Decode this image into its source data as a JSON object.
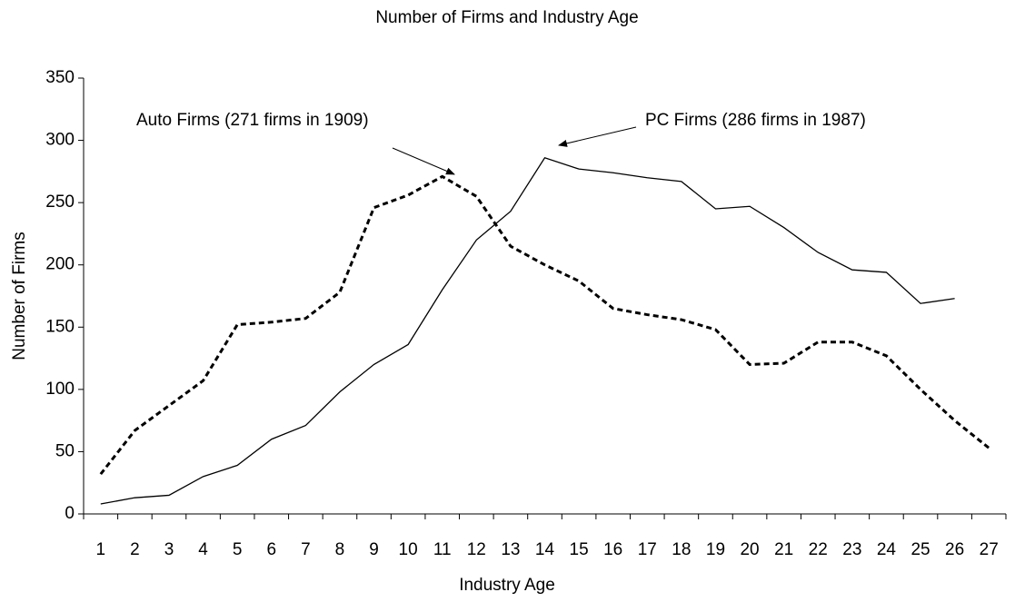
{
  "chart_data": {
    "type": "line",
    "title": "Number of Firms and Industry Age",
    "x_label": "Industry Age",
    "y_label": "Number of Firms",
    "categories": [
      "1",
      "2",
      "3",
      "4",
      "5",
      "6",
      "7",
      "8",
      "9",
      "10",
      "11",
      "12",
      "13",
      "14",
      "15",
      "16",
      "17",
      "18",
      "19",
      "20",
      "21",
      "22",
      "23",
      "24",
      "25",
      "26",
      "27"
    ],
    "series": [
      {
        "color": "#000000",
        "dash": true,
        "values": [
          32,
          67,
          87,
          107,
          152,
          154,
          157,
          178,
          246,
          256,
          271,
          255,
          215,
          200,
          187,
          165,
          160,
          156,
          148,
          120,
          121,
          138,
          138,
          127,
          100,
          75,
          53
        ]
      },
      {
        "color": "#000000",
        "dash": false,
        "values": [
          8,
          13,
          15,
          30,
          39,
          60,
          71,
          98,
          120,
          136,
          180,
          220,
          243,
          286,
          277,
          274,
          270,
          267,
          245,
          247,
          230,
          210,
          196,
          194,
          169,
          173,
          null
        ]
      }
    ],
    "annotations": [
      "Auto Firms (271 firms in 1909)",
      "PC Firms (286 firms in 1987)"
    ],
    "ylim": [
      0,
      350
    ],
    "yticks": [
      0,
      50,
      100,
      150,
      200,
      250,
      300,
      350
    ],
    "grid": false
  }
}
